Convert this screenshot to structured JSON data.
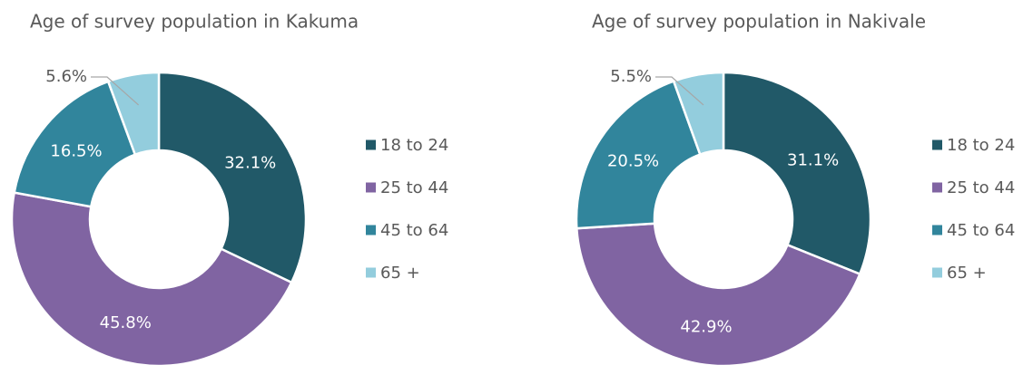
{
  "chart_data": [
    {
      "type": "pie",
      "donut": true,
      "title": "Age of survey population in Kakuma",
      "categories": [
        "18 to 24",
        "25 to 44",
        "45 to 64",
        "65 +"
      ],
      "values": [
        32.1,
        45.8,
        16.5,
        5.6
      ],
      "value_labels": [
        "32.1%",
        "45.8%",
        "16.5%",
        "5.6%"
      ],
      "colors": [
        "#215968",
        "#8064a2",
        "#31859c",
        "#93cddd"
      ]
    },
    {
      "type": "pie",
      "donut": true,
      "title": "Age of survey population in Nakivale",
      "categories": [
        "18 to 24",
        "25 to 44",
        "45 to 64",
        "65 +"
      ],
      "values": [
        31.1,
        42.9,
        20.5,
        5.5
      ],
      "value_labels": [
        "31.1%",
        "42.9%",
        "20.5%",
        "5.5%"
      ],
      "colors": [
        "#215968",
        "#8064a2",
        "#31859c",
        "#93cddd"
      ]
    }
  ]
}
